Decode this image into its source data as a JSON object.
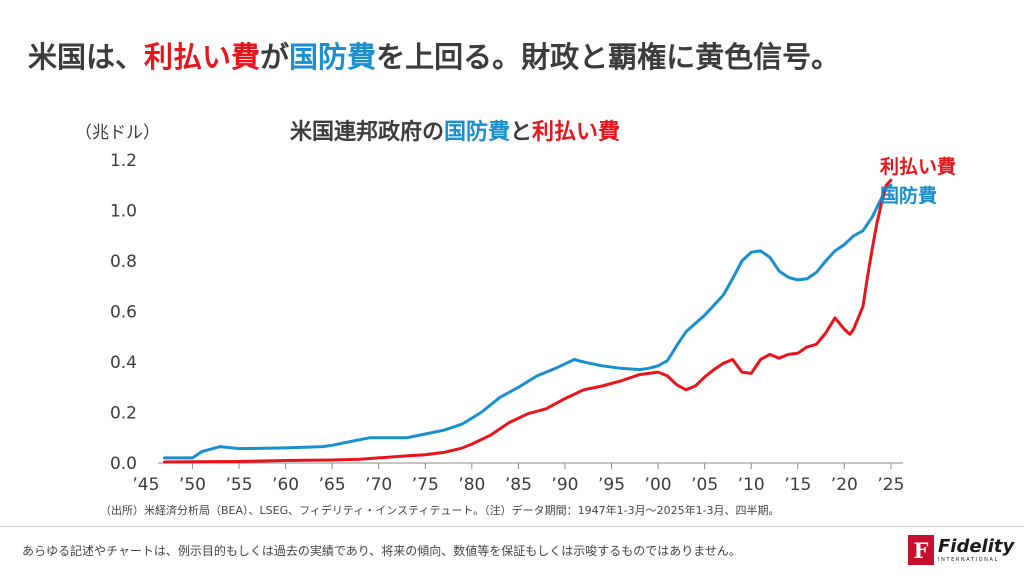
{
  "slide_title": {
    "part1": "米国は、",
    "red": "利払い費",
    "part2": "が",
    "blue": "国防費",
    "part3": "を上回る。財政と覇権に黄色信号。"
  },
  "source_note": "（出所）米経済分析局（BEA）、LSEG、フィデリティ・インスティテュート。（注）データ期間：1947年1-3月〜2025年1-3月、四半期。",
  "disclaimer": "あらゆる記述やチャートは、例示目的もしくは過去の実績であり、将来の傾向、数値等を保証もしくは示唆するものではありません。",
  "logo": {
    "name": "Fidelity",
    "sub": "INTERNATIONAL",
    "mark": "F"
  },
  "colors": {
    "interest": "#e8141b",
    "defense": "#1a8fcf",
    "text": "#3c3c3c"
  },
  "chart_data": {
    "type": "line",
    "title": {
      "part1": "米国連邦政府の",
      "blue": "国防費",
      "part2": "と",
      "red": "利払い費"
    },
    "ylabel": "（兆ドル）",
    "ylim": [
      0,
      1.2
    ],
    "yticks": [
      "0.0",
      "0.2",
      "0.4",
      "0.6",
      "0.8",
      "1.0",
      "1.2"
    ],
    "xlim": [
      1946.3,
      2026.3
    ],
    "xticks": [
      {
        "x": 1945,
        "label": "’45"
      },
      {
        "x": 1950,
        "label": "’50"
      },
      {
        "x": 1955,
        "label": "’55"
      },
      {
        "x": 1960,
        "label": "’60"
      },
      {
        "x": 1965,
        "label": "’65"
      },
      {
        "x": 1970,
        "label": "’70"
      },
      {
        "x": 1975,
        "label": "’75"
      },
      {
        "x": 1980,
        "label": "’80"
      },
      {
        "x": 1985,
        "label": "’85"
      },
      {
        "x": 1990,
        "label": "’90"
      },
      {
        "x": 1995,
        "label": "’95"
      },
      {
        "x": 2000,
        "label": "’00"
      },
      {
        "x": 2005,
        "label": "’05"
      },
      {
        "x": 2010,
        "label": "’10"
      },
      {
        "x": 2015,
        "label": "’15"
      },
      {
        "x": 2020,
        "label": "’20"
      },
      {
        "x": 2025,
        "label": "’25"
      }
    ],
    "grid": false,
    "series": [
      {
        "name": "利払い費",
        "color": "#e8141b",
        "points": [
          [
            1947,
            0.004
          ],
          [
            1950,
            0.005
          ],
          [
            1955,
            0.006
          ],
          [
            1960,
            0.01
          ],
          [
            1965,
            0.012
          ],
          [
            1968,
            0.015
          ],
          [
            1970,
            0.02
          ],
          [
            1973,
            0.028
          ],
          [
            1975,
            0.033
          ],
          [
            1977,
            0.042
          ],
          [
            1979,
            0.06
          ],
          [
            1980,
            0.075
          ],
          [
            1982,
            0.11
          ],
          [
            1984,
            0.16
          ],
          [
            1986,
            0.195
          ],
          [
            1988,
            0.215
          ],
          [
            1990,
            0.255
          ],
          [
            1992,
            0.29
          ],
          [
            1994,
            0.305
          ],
          [
            1996,
            0.325
          ],
          [
            1998,
            0.35
          ],
          [
            1999,
            0.355
          ],
          [
            2000,
            0.36
          ],
          [
            2001,
            0.345
          ],
          [
            2002,
            0.31
          ],
          [
            2003,
            0.29
          ],
          [
            2004,
            0.305
          ],
          [
            2005,
            0.34
          ],
          [
            2006,
            0.37
          ],
          [
            2007,
            0.395
          ],
          [
            2008,
            0.41
          ],
          [
            2009,
            0.36
          ],
          [
            2010,
            0.355
          ],
          [
            2011,
            0.41
          ],
          [
            2012,
            0.43
          ],
          [
            2013,
            0.415
          ],
          [
            2014,
            0.43
          ],
          [
            2015,
            0.435
          ],
          [
            2016,
            0.46
          ],
          [
            2017,
            0.47
          ],
          [
            2018,
            0.515
          ],
          [
            2019,
            0.575
          ],
          [
            2020,
            0.53
          ],
          [
            2020.6,
            0.51
          ],
          [
            2021,
            0.53
          ],
          [
            2022,
            0.62
          ],
          [
            2022.5,
            0.74
          ],
          [
            2023,
            0.85
          ],
          [
            2023.5,
            0.95
          ],
          [
            2024,
            1.03
          ],
          [
            2024.5,
            1.1
          ],
          [
            2025,
            1.12
          ]
        ]
      },
      {
        "name": "国防費",
        "color": "#1a8fcf",
        "points": [
          [
            1947,
            0.02
          ],
          [
            1950,
            0.02
          ],
          [
            1951,
            0.045
          ],
          [
            1953,
            0.065
          ],
          [
            1955,
            0.057
          ],
          [
            1957,
            0.058
          ],
          [
            1960,
            0.06
          ],
          [
            1964,
            0.065
          ],
          [
            1965,
            0.07
          ],
          [
            1967,
            0.085
          ],
          [
            1969,
            0.1
          ],
          [
            1971,
            0.1
          ],
          [
            1973,
            0.1
          ],
          [
            1975,
            0.115
          ],
          [
            1977,
            0.13
          ],
          [
            1979,
            0.155
          ],
          [
            1981,
            0.2
          ],
          [
            1983,
            0.26
          ],
          [
            1985,
            0.3
          ],
          [
            1987,
            0.345
          ],
          [
            1989,
            0.375
          ],
          [
            1991,
            0.41
          ],
          [
            1992,
            0.4
          ],
          [
            1994,
            0.385
          ],
          [
            1996,
            0.375
          ],
          [
            1998,
            0.37
          ],
          [
            1999,
            0.375
          ],
          [
            2000,
            0.385
          ],
          [
            2001,
            0.405
          ],
          [
            2002,
            0.465
          ],
          [
            2003,
            0.52
          ],
          [
            2005,
            0.585
          ],
          [
            2007,
            0.665
          ],
          [
            2008,
            0.73
          ],
          [
            2009,
            0.8
          ],
          [
            2010,
            0.835
          ],
          [
            2011,
            0.84
          ],
          [
            2012,
            0.815
          ],
          [
            2013,
            0.76
          ],
          [
            2014,
            0.735
          ],
          [
            2015,
            0.725
          ],
          [
            2016,
            0.73
          ],
          [
            2017,
            0.755
          ],
          [
            2018,
            0.8
          ],
          [
            2019,
            0.84
          ],
          [
            2020,
            0.865
          ],
          [
            2021,
            0.9
          ],
          [
            2022,
            0.92
          ],
          [
            2023,
            0.975
          ],
          [
            2024,
            1.05
          ],
          [
            2024.5,
            1.09
          ],
          [
            2025,
            1.1
          ]
        ]
      }
    ]
  }
}
